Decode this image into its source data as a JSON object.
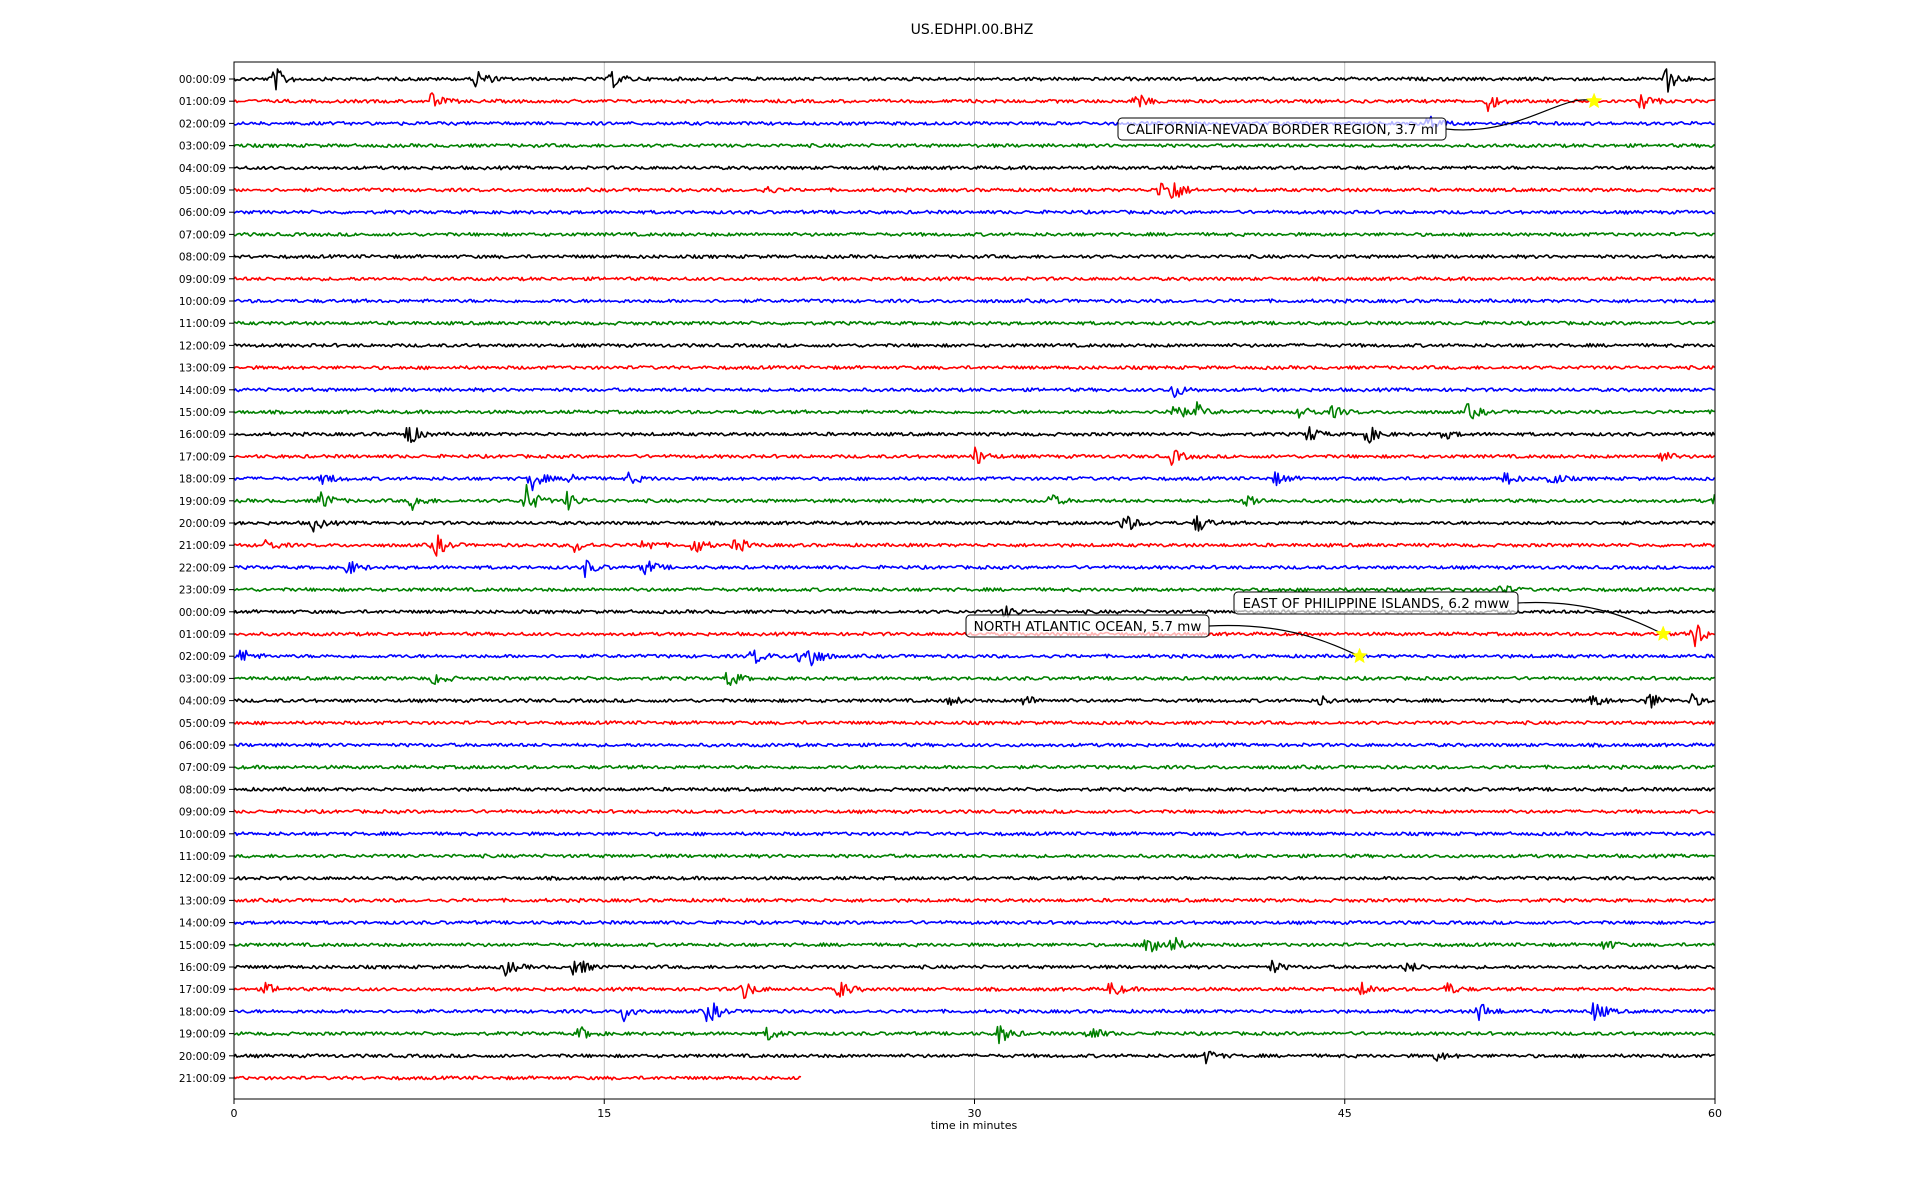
{
  "chart_data": {
    "type": "line",
    "title": "US.EDHPI.00.BHZ",
    "xlabel": "time in minutes",
    "ylabel": "",
    "xlim": [
      0,
      60
    ],
    "x_ticks": [
      "0",
      "15",
      "30",
      "45",
      "60"
    ],
    "grid": "vertical lines at x ticks",
    "row_labels": [
      "00:00:09",
      "01:00:09",
      "02:00:09",
      "03:00:09",
      "04:00:09",
      "05:00:09",
      "06:00:09",
      "07:00:09",
      "08:00:09",
      "09:00:09",
      "10:00:09",
      "11:00:09",
      "12:00:09",
      "13:00:09",
      "14:00:09",
      "15:00:09",
      "16:00:09",
      "17:00:09",
      "18:00:09",
      "19:00:09",
      "20:00:09",
      "21:00:09",
      "22:00:09",
      "23:00:09",
      "00:00:09",
      "01:00:09",
      "02:00:09",
      "03:00:09",
      "04:00:09",
      "05:00:09",
      "06:00:09",
      "07:00:09",
      "08:00:09",
      "09:00:09",
      "10:00:09",
      "11:00:09",
      "12:00:09",
      "13:00:09",
      "14:00:09",
      "15:00:09",
      "16:00:09",
      "17:00:09",
      "18:00:09",
      "19:00:09",
      "20:00:09",
      "21:00:09"
    ],
    "color_cycle": [
      "#000000",
      "#ff0000",
      "#0000ff",
      "#008000"
    ],
    "last_row_end_minute": 23,
    "bursts": [
      {
        "row": 0,
        "t": 1.6,
        "a": 14
      },
      {
        "row": 0,
        "t": 9.8,
        "a": 11
      },
      {
        "row": 0,
        "t": 15.3,
        "a": 9
      },
      {
        "row": 0,
        "t": 58.0,
        "a": 15
      },
      {
        "row": 1,
        "t": 8.0,
        "a": 8
      },
      {
        "row": 1,
        "t": 36.5,
        "a": 9
      },
      {
        "row": 1,
        "t": 50.8,
        "a": 9
      },
      {
        "row": 1,
        "t": 57.0,
        "a": 10
      },
      {
        "row": 2,
        "t": 48.4,
        "a": 10
      },
      {
        "row": 5,
        "t": 21.5,
        "a": 4
      },
      {
        "row": 5,
        "t": 37.5,
        "a": 10
      },
      {
        "row": 5,
        "t": 38.0,
        "a": 12
      },
      {
        "row": 14,
        "t": 38.0,
        "a": 9
      },
      {
        "row": 15,
        "t": 37.9,
        "a": 16
      },
      {
        "row": 15,
        "t": 39.0,
        "a": 8
      },
      {
        "row": 15,
        "t": 43.2,
        "a": 7
      },
      {
        "row": 15,
        "t": 44.5,
        "a": 6
      },
      {
        "row": 15,
        "t": 50.0,
        "a": 9
      },
      {
        "row": 16,
        "t": 7.0,
        "a": 14
      },
      {
        "row": 16,
        "t": 43.5,
        "a": 9
      },
      {
        "row": 16,
        "t": 45.9,
        "a": 10
      },
      {
        "row": 16,
        "t": 49.0,
        "a": 5
      },
      {
        "row": 17,
        "t": 30.0,
        "a": 10
      },
      {
        "row": 17,
        "t": 38.0,
        "a": 8
      },
      {
        "row": 17,
        "t": 57.8,
        "a": 6
      },
      {
        "row": 18,
        "t": 3.6,
        "a": 7
      },
      {
        "row": 18,
        "t": 12.0,
        "a": 14
      },
      {
        "row": 18,
        "t": 13.6,
        "a": 6
      },
      {
        "row": 18,
        "t": 16.0,
        "a": 6
      },
      {
        "row": 18,
        "t": 42.2,
        "a": 7
      },
      {
        "row": 18,
        "t": 51.5,
        "a": 7
      },
      {
        "row": 18,
        "t": 53.3,
        "a": 8
      },
      {
        "row": 19,
        "t": 3.5,
        "a": 11
      },
      {
        "row": 19,
        "t": 7.2,
        "a": 9
      },
      {
        "row": 19,
        "t": 11.8,
        "a": 18
      },
      {
        "row": 19,
        "t": 13.5,
        "a": 9
      },
      {
        "row": 19,
        "t": 33.0,
        "a": 8
      },
      {
        "row": 19,
        "t": 41.0,
        "a": 9
      },
      {
        "row": 19,
        "t": 60.0,
        "a": 9
      },
      {
        "row": 20,
        "t": 3.2,
        "a": 8
      },
      {
        "row": 20,
        "t": 36.0,
        "a": 13
      },
      {
        "row": 20,
        "t": 39.0,
        "a": 10
      },
      {
        "row": 21,
        "t": 1.3,
        "a": 6
      },
      {
        "row": 21,
        "t": 8.1,
        "a": 14
      },
      {
        "row": 21,
        "t": 13.8,
        "a": 7
      },
      {
        "row": 21,
        "t": 16.6,
        "a": 8
      },
      {
        "row": 21,
        "t": 18.6,
        "a": 10
      },
      {
        "row": 21,
        "t": 20.3,
        "a": 9
      },
      {
        "row": 22,
        "t": 4.6,
        "a": 8
      },
      {
        "row": 22,
        "t": 14.2,
        "a": 9
      },
      {
        "row": 22,
        "t": 16.6,
        "a": 10
      },
      {
        "row": 23,
        "t": 51.3,
        "a": 5
      },
      {
        "row": 24,
        "t": 31.2,
        "a": 6
      },
      {
        "row": 25,
        "t": 59.1,
        "a": 18
      },
      {
        "row": 26,
        "t": 0.3,
        "a": 8
      },
      {
        "row": 26,
        "t": 21.0,
        "a": 10
      },
      {
        "row": 26,
        "t": 22.8,
        "a": 8
      },
      {
        "row": 26,
        "t": 23.3,
        "a": 13
      },
      {
        "row": 27,
        "t": 8.1,
        "a": 7
      },
      {
        "row": 27,
        "t": 20.0,
        "a": 10
      },
      {
        "row": 28,
        "t": 29.0,
        "a": 5
      },
      {
        "row": 28,
        "t": 32.0,
        "a": 6
      },
      {
        "row": 28,
        "t": 44.0,
        "a": 5
      },
      {
        "row": 28,
        "t": 55.0,
        "a": 8
      },
      {
        "row": 28,
        "t": 57.3,
        "a": 10
      },
      {
        "row": 28,
        "t": 59.0,
        "a": 7
      },
      {
        "row": 39,
        "t": 37.0,
        "a": 20
      },
      {
        "row": 39,
        "t": 38.0,
        "a": 8
      },
      {
        "row": 39,
        "t": 55.5,
        "a": 6
      },
      {
        "row": 40,
        "t": 11.0,
        "a": 8
      },
      {
        "row": 40,
        "t": 13.8,
        "a": 12
      },
      {
        "row": 40,
        "t": 42.0,
        "a": 7
      },
      {
        "row": 40,
        "t": 47.5,
        "a": 6
      },
      {
        "row": 41,
        "t": 1.3,
        "a": 6
      },
      {
        "row": 41,
        "t": 20.6,
        "a": 11
      },
      {
        "row": 41,
        "t": 24.5,
        "a": 10
      },
      {
        "row": 41,
        "t": 35.5,
        "a": 9
      },
      {
        "row": 41,
        "t": 45.7,
        "a": 8
      },
      {
        "row": 41,
        "t": 49.1,
        "a": 7
      },
      {
        "row": 42,
        "t": 15.8,
        "a": 10
      },
      {
        "row": 42,
        "t": 19.2,
        "a": 14
      },
      {
        "row": 42,
        "t": 50.4,
        "a": 11
      },
      {
        "row": 42,
        "t": 55.1,
        "a": 12
      },
      {
        "row": 43,
        "t": 14.0,
        "a": 7
      },
      {
        "row": 43,
        "t": 21.6,
        "a": 7
      },
      {
        "row": 43,
        "t": 31.0,
        "a": 11
      },
      {
        "row": 43,
        "t": 34.6,
        "a": 10
      },
      {
        "row": 44,
        "t": 39.3,
        "a": 8
      },
      {
        "row": 44,
        "t": 48.7,
        "a": 5
      }
    ],
    "events": [
      {
        "label": "CALIFORNIA-NEVADA BORDER REGION, 3.7 ml",
        "row": 1,
        "minute": 55.1
      },
      {
        "label": "EAST OF PHILIPPINE ISLANDS, 6.2 mww",
        "row": 25,
        "minute": 57.9
      },
      {
        "label": "NORTH ATLANTIC OCEAN, 5.7 mw",
        "row": 26,
        "minute": 45.6
      }
    ],
    "marker": {
      "shape": "star",
      "color": "#ffff00"
    }
  }
}
